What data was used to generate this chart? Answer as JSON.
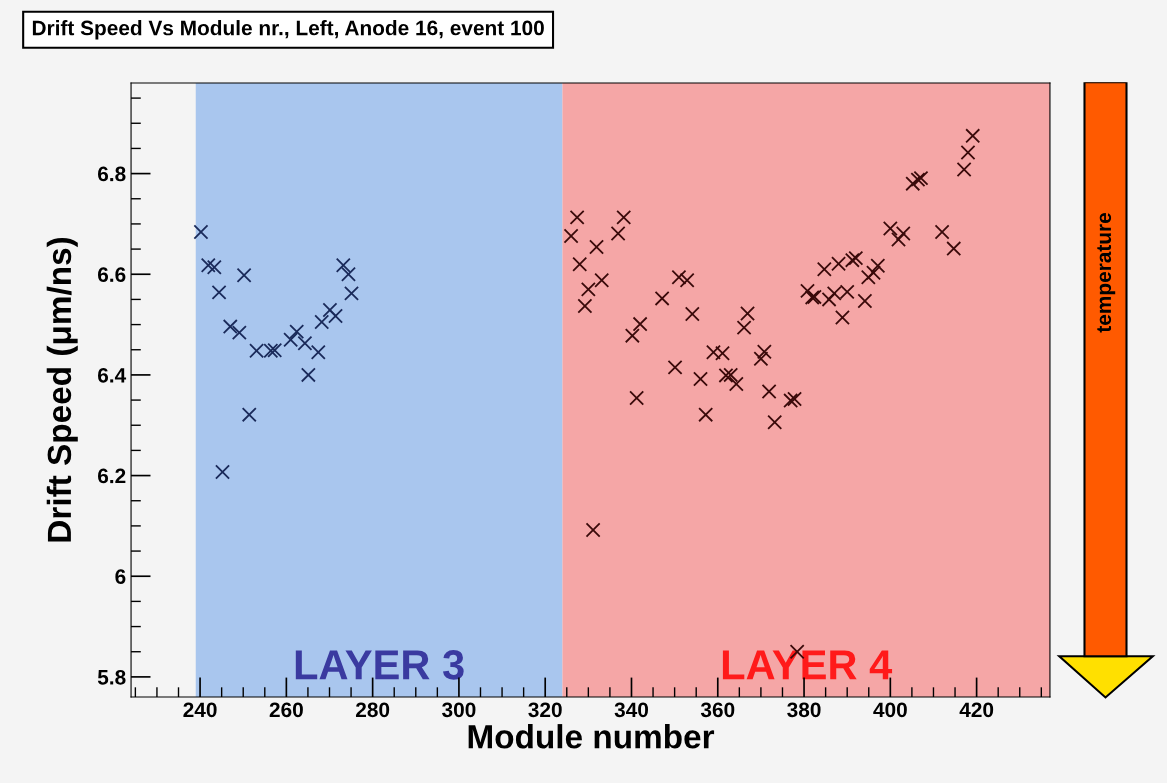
{
  "chart_data": {
    "type": "scatter",
    "title": "Drift Speed Vs Module nr., Left, Anode 16, event 100",
    "xlabel": "Module number",
    "ylabel": "Drift Speed (μm/ns)",
    "xlim": [
      224,
      437
    ],
    "xticks": [
      240,
      260,
      280,
      300,
      320,
      340,
      360,
      380,
      400,
      420
    ],
    "ylim": [
      5.76,
      6.98
    ],
    "yticks": [
      5.8,
      {
        "value": 6,
        "label": "6"
      },
      6.2,
      6.4,
      6.6,
      6.8
    ],
    "marker": "cross",
    "grid": false,
    "bands": [
      {
        "axis": "x",
        "from": 239,
        "to": 324,
        "label": "LAYER 3",
        "color": "#a9c6ee"
      },
      {
        "axis": "x",
        "from": 324,
        "to": 437,
        "label": "LAYER 4",
        "color": "#f5a6a6"
      }
    ],
    "annotations": [
      "temperature"
    ],
    "series": [
      {
        "color": "#1a2a5a",
        "x": [
          240.2,
          241.9,
          243.3,
          250.2,
          244.4,
          247.0,
          249.1,
          253.1,
          256.4,
          257.3,
          262.4,
          261.0,
          264.3,
          267.4,
          265.1,
          268.2,
          270.1,
          271.4,
          273.2,
          274.4,
          275.1,
          251.4,
          245.2
        ],
        "values": [
          6.684,
          6.618,
          6.614,
          6.598,
          6.564,
          6.496,
          6.484,
          6.448,
          6.448,
          6.449,
          6.486,
          6.47,
          6.463,
          6.445,
          6.4,
          6.505,
          6.529,
          6.517,
          6.618,
          6.6,
          6.562,
          6.321,
          6.207
        ]
      },
      {
        "color": "#3a0a0a",
        "x": [
          327.4,
          326.0,
          338.2,
          336.9,
          331.9,
          328.0,
          333.1,
          330.0,
          329.2,
          351.0,
          352.9,
          347.1,
          354.1,
          342.0,
          340.2,
          366.9,
          366.1,
          359.0,
          361.1,
          370.8,
          370.0,
          350.1,
          356.0,
          361.9,
          363.0,
          364.3,
          371.9,
          376.9,
          377.8,
          341.2,
          357.2,
          373.2,
          331.1,
          380.8,
          381.9,
          419.1,
          418.0,
          417.1,
          407.1,
          405.2,
          406.4,
          400.0,
          403.0,
          401.9,
          412.0,
          414.7,
          384.7,
          388.0,
          391.2,
          392.0,
          397.1,
          396.1,
          394.9,
          382.4,
          385.8,
          387.0,
          390.0,
          394.1,
          388.9,
          378.4
        ],
        "values": [
          6.713,
          6.676,
          6.713,
          6.681,
          6.654,
          6.62,
          6.588,
          6.57,
          6.537,
          6.594,
          6.588,
          6.552,
          6.521,
          6.501,
          6.478,
          6.522,
          6.494,
          6.445,
          6.443,
          6.446,
          6.432,
          6.415,
          6.392,
          6.399,
          6.4,
          6.382,
          6.367,
          6.349,
          6.352,
          6.354,
          6.321,
          6.306,
          6.092,
          6.567,
          6.554,
          6.875,
          6.842,
          6.808,
          6.791,
          6.78,
          6.788,
          6.691,
          6.681,
          6.669,
          6.684,
          6.651,
          6.61,
          6.621,
          6.628,
          6.632,
          6.617,
          6.603,
          6.594,
          6.555,
          6.55,
          6.562,
          6.565,
          6.547,
          6.514,
          5.85
        ]
      }
    ]
  }
}
